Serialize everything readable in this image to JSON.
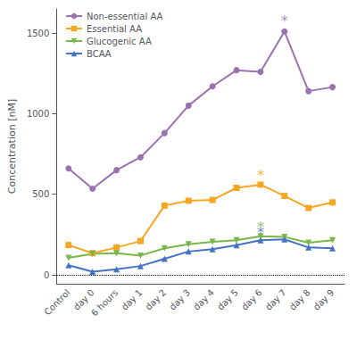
{
  "chart_data": {
    "type": "line",
    "categories": [
      "Control",
      "day 0",
      "6 hours",
      "day 1",
      "day 2",
      "day 3",
      "day 4",
      "day 5",
      "day 6",
      "day 7",
      "day 8",
      "day 9"
    ],
    "series": [
      {
        "name": "Non-essential AA",
        "color": "#9b72b0",
        "marker": "circle",
        "values": [
          660,
          535,
          650,
          730,
          880,
          1050,
          1170,
          1270,
          1260,
          1510,
          1140,
          1165
        ]
      },
      {
        "name": "Essential AA",
        "color": "#f5a623",
        "marker": "square",
        "values": [
          185,
          135,
          170,
          210,
          430,
          460,
          465,
          540,
          560,
          490,
          415,
          450
        ]
      },
      {
        "name": "Glucogenic AA",
        "color": "#7ab648",
        "marker": "triangle-down",
        "values": [
          105,
          130,
          135,
          120,
          165,
          190,
          205,
          215,
          240,
          235,
          200,
          215
        ]
      },
      {
        "name": "BCAA",
        "color": "#4472c4",
        "marker": "triangle",
        "values": [
          60,
          20,
          35,
          55,
          100,
          145,
          160,
          185,
          215,
          220,
          170,
          165
        ]
      }
    ],
    "annotations": [
      {
        "text": "*",
        "x": "day 7",
        "y": 1575,
        "color": "#9b72b0"
      },
      {
        "text": "*",
        "x": "day 6",
        "y": 618,
        "color": "#f5a623"
      },
      {
        "text": "*",
        "x": "day 6",
        "y": 295,
        "color": "#7ab648"
      },
      {
        "text": "*",
        "x": "day 6",
        "y": 265,
        "color": "#4472c4"
      }
    ],
    "hline": {
      "y": 0,
      "line_style": "dotted",
      "color": "#000000"
    },
    "ylabel": "Concentration [nM]",
    "ylim": [
      -55,
      1650
    ],
    "yticks": [
      0,
      500,
      1000,
      1500
    ],
    "grid": false,
    "legend": "upper left"
  }
}
